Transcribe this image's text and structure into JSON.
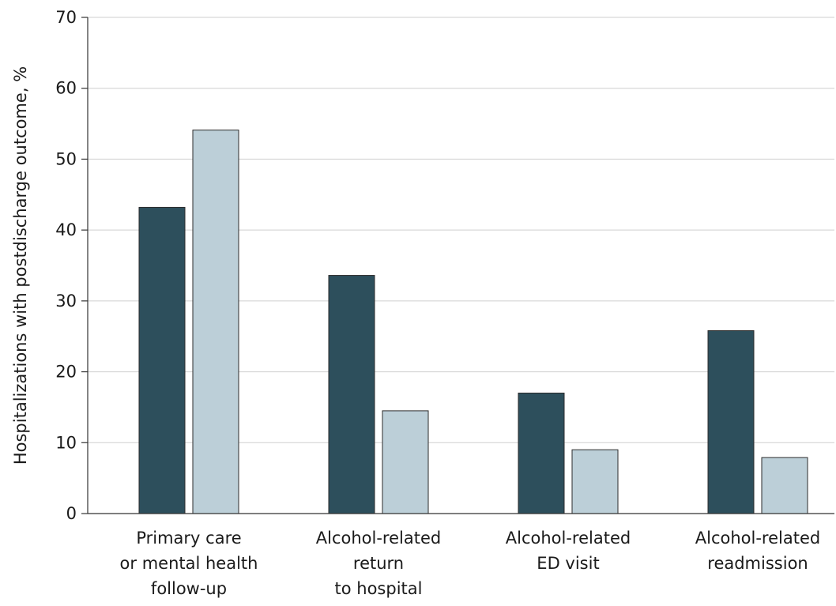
{
  "chart_data": {
    "type": "bar",
    "title": "",
    "xlabel": "",
    "ylabel": "Hospitalizations with postdischarge outcome, %",
    "ylim": [
      0,
      70
    ],
    "yticks": [
      0,
      10,
      20,
      30,
      40,
      50,
      60,
      70
    ],
    "grid": true,
    "legend": "none",
    "categories": [
      [
        "Primary care",
        "or mental health",
        "follow-up"
      ],
      [
        "Alcohol-related",
        "return",
        "to hospital"
      ],
      [
        "Alcohol-related",
        "ED visit"
      ],
      [
        "Alcohol-related",
        "readmission"
      ]
    ],
    "series": [
      {
        "values": [
          43.2,
          33.6,
          17.0,
          25.8
        ],
        "color": "#2d4f5c"
      },
      {
        "values": [
          54.1,
          14.5,
          9.0,
          7.9
        ],
        "color": "#bccfd8"
      }
    ]
  }
}
